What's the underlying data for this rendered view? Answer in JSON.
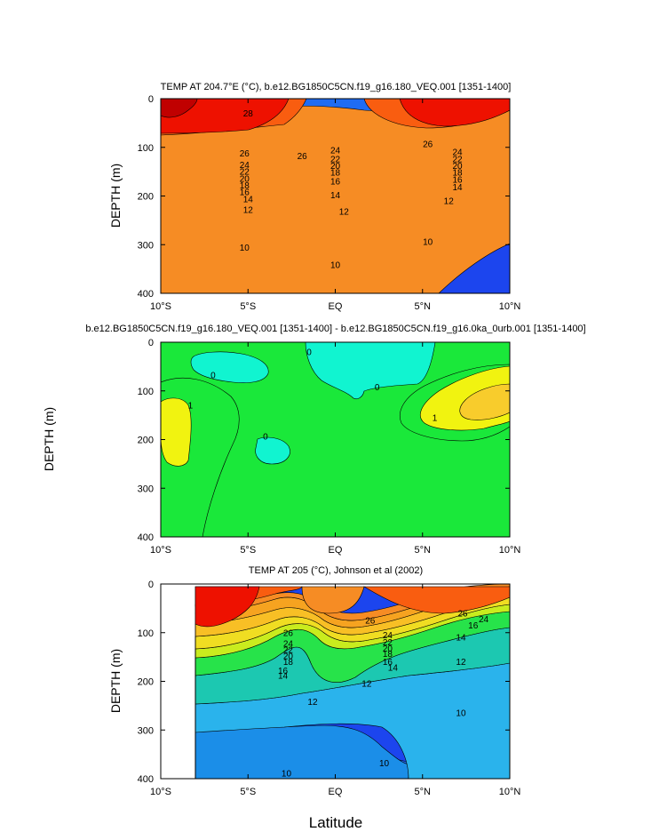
{
  "figure": {
    "xlabel": "Latitude",
    "xticks": [
      "10°S",
      "5°S",
      "EQ",
      "5°N",
      "10°N"
    ],
    "yticks": [
      "0",
      "100",
      "200",
      "300",
      "400"
    ]
  },
  "chart_data": [
    {
      "type": "heatmap",
      "subtype": "filled contour",
      "title": "TEMP AT 204.7°E (°C), b.e12.BG1850C5CN.f19_g16.180_VEQ.001 [1351-1400]",
      "xlabel": "",
      "ylabel": "DEPTH (m)",
      "x_range": [
        -10,
        10
      ],
      "y_range": [
        0,
        400
      ],
      "y_reversed": true,
      "contour_labels": [
        {
          "x": -5,
          "y": 30,
          "text": "28"
        },
        {
          "x": -5.2,
          "y": 112,
          "text": "26"
        },
        {
          "x": -5.2,
          "y": 136,
          "text": "24"
        },
        {
          "x": -5.2,
          "y": 150,
          "text": "22"
        },
        {
          "x": -5.2,
          "y": 164,
          "text": "20"
        },
        {
          "x": -5.2,
          "y": 178,
          "text": "18"
        },
        {
          "x": -5.2,
          "y": 192,
          "text": "16"
        },
        {
          "x": -5.0,
          "y": 206,
          "text": "14"
        },
        {
          "x": -5.0,
          "y": 228,
          "text": "12"
        },
        {
          "x": -5.2,
          "y": 306,
          "text": "10"
        },
        {
          "x": -1.9,
          "y": 118,
          "text": "26"
        },
        {
          "x": 0.0,
          "y": 106,
          "text": "24"
        },
        {
          "x": 0.0,
          "y": 124,
          "text": "22"
        },
        {
          "x": 0.0,
          "y": 138,
          "text": "20"
        },
        {
          "x": 0.0,
          "y": 152,
          "text": "18"
        },
        {
          "x": 0.0,
          "y": 170,
          "text": "16"
        },
        {
          "x": 0.0,
          "y": 198,
          "text": "14"
        },
        {
          "x": 0.5,
          "y": 232,
          "text": "12"
        },
        {
          "x": 0.0,
          "y": 342,
          "text": "10"
        },
        {
          "x": 5.3,
          "y": 93,
          "text": "26"
        },
        {
          "x": 7.0,
          "y": 110,
          "text": "24"
        },
        {
          "x": 7.0,
          "y": 124,
          "text": "22"
        },
        {
          "x": 7.0,
          "y": 138,
          "text": "20"
        },
        {
          "x": 7.0,
          "y": 152,
          "text": "18"
        },
        {
          "x": 7.0,
          "y": 166,
          "text": "16"
        },
        {
          "x": 7.0,
          "y": 182,
          "text": "14"
        },
        {
          "x": 6.5,
          "y": 210,
          "text": "12"
        },
        {
          "x": 5.3,
          "y": 294,
          "text": "10"
        }
      ]
    },
    {
      "type": "heatmap",
      "subtype": "filled contour",
      "title": "b.e12.BG1850C5CN.f19_g16.180_VEQ.001 [1351-1400] - b.e12.BG1850C5CN.f19_g16.0ka_0urb.001 [1351-1400]",
      "xlabel": "",
      "ylabel": "DEPTH (m)",
      "x_range": [
        -10,
        10
      ],
      "y_range": [
        0,
        400
      ],
      "y_reversed": true,
      "contour_labels": [
        {
          "x": -7.0,
          "y": 68,
          "text": "0"
        },
        {
          "x": -8.3,
          "y": 130,
          "text": "1"
        },
        {
          "x": -4.0,
          "y": 194,
          "text": "0"
        },
        {
          "x": -1.5,
          "y": 20,
          "text": "0"
        },
        {
          "x": 2.4,
          "y": 92,
          "text": "0"
        },
        {
          "x": 5.7,
          "y": 155,
          "text": "1"
        }
      ]
    },
    {
      "type": "heatmap",
      "subtype": "filled contour",
      "title": "TEMP AT 205 (°C), Johnson et al (2002)",
      "xlabel": "Latitude",
      "ylabel": "DEPTH (m)",
      "x_range": [
        -10,
        10
      ],
      "y_range": [
        0,
        400
      ],
      "y_reversed": true,
      "contour_labels": [
        {
          "x": -2.7,
          "y": 100,
          "text": "26"
        },
        {
          "x": -2.7,
          "y": 122,
          "text": "24"
        },
        {
          "x": -2.7,
          "y": 135,
          "text": "22"
        },
        {
          "x": -2.7,
          "y": 148,
          "text": "20"
        },
        {
          "x": -2.7,
          "y": 160,
          "text": "18"
        },
        {
          "x": -3.0,
          "y": 178,
          "text": "16"
        },
        {
          "x": -3.0,
          "y": 188,
          "text": "14"
        },
        {
          "x": -1.3,
          "y": 242,
          "text": "12"
        },
        {
          "x": -2.8,
          "y": 389,
          "text": "10"
        },
        {
          "x": 2.0,
          "y": 75,
          "text": "26"
        },
        {
          "x": 3.0,
          "y": 105,
          "text": "24"
        },
        {
          "x": 3.0,
          "y": 120,
          "text": "22"
        },
        {
          "x": 3.0,
          "y": 132,
          "text": "20"
        },
        {
          "x": 3.0,
          "y": 143,
          "text": "18"
        },
        {
          "x": 3.0,
          "y": 160,
          "text": "16"
        },
        {
          "x": 3.3,
          "y": 172,
          "text": "14"
        },
        {
          "x": 1.8,
          "y": 205,
          "text": "12"
        },
        {
          "x": 7.3,
          "y": 60,
          "text": "26"
        },
        {
          "x": 8.5,
          "y": 72,
          "text": "24"
        },
        {
          "x": 7.9,
          "y": 85,
          "text": "16"
        },
        {
          "x": 7.2,
          "y": 110,
          "text": "14"
        },
        {
          "x": 7.2,
          "y": 160,
          "text": "12"
        },
        {
          "x": 7.2,
          "y": 265,
          "text": "10"
        },
        {
          "x": 2.8,
          "y": 368,
          "text": "10"
        }
      ]
    }
  ],
  "colors": {
    "c28": "#ee1100",
    "c26": "#f95d10",
    "c24": "#f68c24",
    "c22": "#f6a320",
    "c20": "#f8bf25",
    "c18": "#f0dd22",
    "c16": "#c9ec1e",
    "c14": "#27e34a",
    "c12": "#1cc8b1",
    "c10": "#2ab3ec",
    "c8": "#1b8ee8",
    "c6": "#1f6cf3",
    "c4": "#1c45ee",
    "c2": "#0a17ee",
    "diff_neg": "#11f4d0",
    "diff_zero": "#1ae83a",
    "diff_pos": "#f1f310",
    "diff_pos2": "#f8cc2c"
  }
}
